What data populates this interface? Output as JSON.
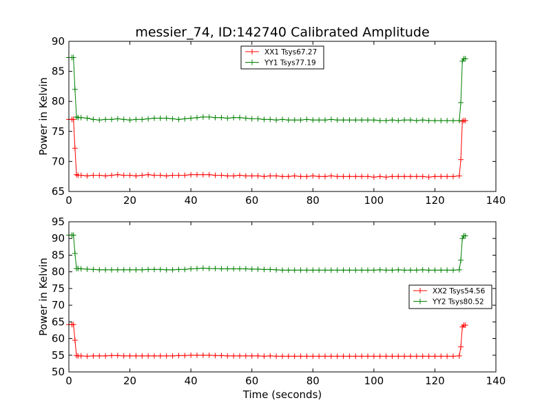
{
  "chart_data": [
    {
      "type": "line",
      "title": "messier_74, ID:142740 Calibrated Amplitude",
      "xlabel": "",
      "ylabel": "Power in Kelvin",
      "xlim": [
        0,
        140
      ],
      "ylim": [
        65,
        90
      ],
      "xticks": [
        0,
        20,
        40,
        60,
        80,
        100,
        120,
        140
      ],
      "yticks": [
        65,
        70,
        75,
        80,
        85,
        90
      ],
      "grid": false,
      "legend_position": "top-center",
      "x": [
        0,
        1,
        1.5,
        2,
        2.5,
        3,
        4,
        6,
        8,
        10,
        12,
        14,
        16,
        18,
        20,
        22,
        24,
        26,
        28,
        30,
        32,
        34,
        36,
        38,
        40,
        42,
        44,
        46,
        48,
        50,
        52,
        54,
        56,
        58,
        60,
        62,
        64,
        66,
        68,
        70,
        72,
        74,
        76,
        78,
        80,
        82,
        84,
        86,
        88,
        90,
        92,
        94,
        96,
        98,
        100,
        102,
        104,
        106,
        108,
        110,
        112,
        114,
        116,
        118,
        120,
        122,
        124,
        126,
        128,
        128.5,
        129,
        129.5,
        130
      ],
      "series": [
        {
          "name": "XX1 Tsys67.27",
          "color": "#ff0000",
          "values": [
            77,
            77,
            77,
            72.2,
            67.8,
            67.7,
            67.7,
            67.6,
            67.7,
            67.7,
            67.6,
            67.7,
            67.8,
            67.7,
            67.7,
            67.6,
            67.7,
            67.8,
            67.7,
            67.7,
            67.6,
            67.7,
            67.7,
            67.7,
            67.8,
            67.8,
            67.8,
            67.8,
            67.7,
            67.7,
            67.6,
            67.6,
            67.7,
            67.6,
            67.6,
            67.6,
            67.5,
            67.6,
            67.6,
            67.5,
            67.5,
            67.6,
            67.5,
            67.5,
            67.6,
            67.5,
            67.5,
            67.6,
            67.5,
            67.5,
            67.5,
            67.5,
            67.5,
            67.5,
            67.4,
            67.5,
            67.4,
            67.5,
            67.5,
            67.5,
            67.5,
            67.5,
            67.5,
            67.4,
            67.5,
            67.5,
            67.5,
            67.5,
            67.6,
            70.3,
            76.7,
            76.8,
            76.8
          ]
        },
        {
          "name": "YY1 Tsys77.19",
          "color": "#008000",
          "values": [
            87.3,
            87.3,
            87.3,
            82,
            77.4,
            77.3,
            77.3,
            77.2,
            77.0,
            76.9,
            77.0,
            77.0,
            77.1,
            77.0,
            76.9,
            77.0,
            77.0,
            77.1,
            77.2,
            77.2,
            77.2,
            77.1,
            77.0,
            77.1,
            77.2,
            77.3,
            77.4,
            77.4,
            77.3,
            77.3,
            77.2,
            77.3,
            77.3,
            77.2,
            77.1,
            77.1,
            77.0,
            77.0,
            76.9,
            77.0,
            76.9,
            76.9,
            76.9,
            77.0,
            76.9,
            76.9,
            76.9,
            77.0,
            76.9,
            76.9,
            76.9,
            76.9,
            76.9,
            76.9,
            76.9,
            76.8,
            76.8,
            76.9,
            76.8,
            76.9,
            76.9,
            76.8,
            76.9,
            76.8,
            76.8,
            76.8,
            76.8,
            76.8,
            76.8,
            79.8,
            86.7,
            87.1,
            87.1
          ]
        }
      ]
    },
    {
      "type": "line",
      "title": "",
      "xlabel": "Time (seconds)",
      "ylabel": "Power in Kelvin",
      "xlim": [
        0,
        140
      ],
      "ylim": [
        50,
        95
      ],
      "xticks": [
        0,
        20,
        40,
        60,
        80,
        100,
        120,
        140
      ],
      "yticks": [
        50,
        55,
        60,
        65,
        70,
        75,
        80,
        85,
        90,
        95
      ],
      "grid": false,
      "legend_position": "center-right",
      "x": [
        0,
        1,
        1.5,
        2,
        2.5,
        3,
        4,
        6,
        8,
        10,
        12,
        14,
        16,
        18,
        20,
        22,
        24,
        26,
        28,
        30,
        32,
        34,
        36,
        38,
        40,
        42,
        44,
        46,
        48,
        50,
        52,
        54,
        56,
        58,
        60,
        62,
        64,
        66,
        68,
        70,
        72,
        74,
        76,
        78,
        80,
        82,
        84,
        86,
        88,
        90,
        92,
        94,
        96,
        98,
        100,
        102,
        104,
        106,
        108,
        110,
        112,
        114,
        116,
        118,
        120,
        122,
        124,
        126,
        128,
        128.5,
        129,
        129.5,
        130
      ],
      "series": [
        {
          "name": "XX2 Tsys54.56",
          "color": "#ff0000",
          "values": [
            64.2,
            64.2,
            64.2,
            59.5,
            54.9,
            54.8,
            54.8,
            54.7,
            54.8,
            54.8,
            54.8,
            54.9,
            54.9,
            54.8,
            54.8,
            54.8,
            54.8,
            54.8,
            54.8,
            54.8,
            54.8,
            54.8,
            54.9,
            54.9,
            55.0,
            55.0,
            55.0,
            55.0,
            54.9,
            54.9,
            54.8,
            54.8,
            54.8,
            54.8,
            54.8,
            54.8,
            54.7,
            54.8,
            54.7,
            54.7,
            54.7,
            54.7,
            54.7,
            54.7,
            54.7,
            54.7,
            54.7,
            54.7,
            54.7,
            54.7,
            54.7,
            54.7,
            54.7,
            54.7,
            54.7,
            54.7,
            54.7,
            54.7,
            54.7,
            54.7,
            54.7,
            54.7,
            54.7,
            54.7,
            54.7,
            54.7,
            54.7,
            54.7,
            54.8,
            57.5,
            63.5,
            64.0,
            64.0
          ]
        },
        {
          "name": "YY2 Tsys80.52",
          "color": "#008000",
          "values": [
            91,
            91,
            91,
            85.5,
            81,
            81,
            80.9,
            80.8,
            80.7,
            80.6,
            80.6,
            80.6,
            80.6,
            80.6,
            80.6,
            80.6,
            80.6,
            80.7,
            80.7,
            80.7,
            80.6,
            80.6,
            80.7,
            80.7,
            80.9,
            81.0,
            81.1,
            81.0,
            81.0,
            80.9,
            80.9,
            80.9,
            80.9,
            80.9,
            80.8,
            80.8,
            80.7,
            80.7,
            80.6,
            80.5,
            80.5,
            80.5,
            80.5,
            80.5,
            80.5,
            80.5,
            80.5,
            80.5,
            80.5,
            80.5,
            80.5,
            80.5,
            80.5,
            80.5,
            80.5,
            80.6,
            80.5,
            80.5,
            80.6,
            80.5,
            80.5,
            80.5,
            80.6,
            80.5,
            80.5,
            80.5,
            80.5,
            80.5,
            80.6,
            83.5,
            90.0,
            90.8,
            90.8
          ]
        }
      ]
    }
  ]
}
